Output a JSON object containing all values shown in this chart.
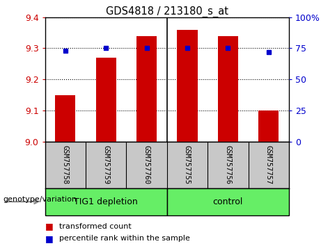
{
  "title": "GDS4818 / 213180_s_at",
  "samples": [
    "GSM757758",
    "GSM757759",
    "GSM757760",
    "GSM757755",
    "GSM757756",
    "GSM757757"
  ],
  "bar_values": [
    9.15,
    9.27,
    9.34,
    9.36,
    9.34,
    9.1
  ],
  "percentile_values": [
    73,
    75,
    75,
    75,
    75,
    72
  ],
  "group1_label": "TIG1 depletion",
  "group2_label": "control",
  "group_color": "#66EE66",
  "sample_bg_color": "#C8C8C8",
  "bar_color": "#CC0000",
  "dot_color": "#0000CC",
  "ylim_left": [
    9.0,
    9.4
  ],
  "ylim_right": [
    0,
    100
  ],
  "yticks_left": [
    9.0,
    9.1,
    9.2,
    9.3,
    9.4
  ],
  "yticks_right": [
    0,
    25,
    50,
    75,
    100
  ],
  "label_color_left": "#CC0000",
  "label_color_right": "#0000CC",
  "legend_bar_label": "transformed count",
  "legend_dot_label": "percentile rank within the sample",
  "genotype_label": "genotype/variation",
  "bar_width": 0.5
}
